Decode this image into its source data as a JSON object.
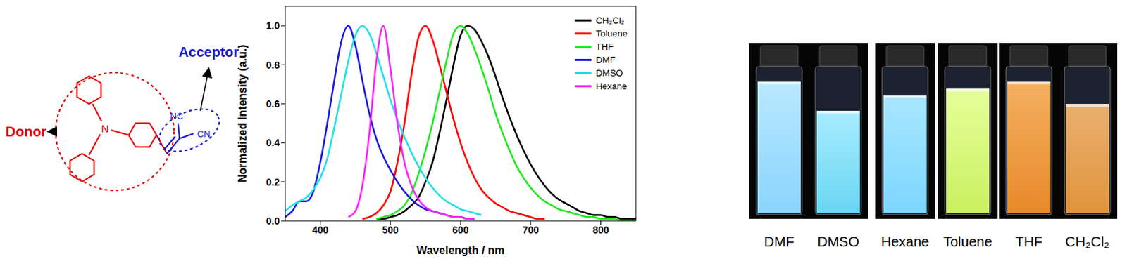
{
  "diagram": {
    "donor": "Donor",
    "acceptor": "Acceptor",
    "atoms": [
      "N",
      "NC",
      "CN"
    ]
  },
  "chart_data": {
    "type": "line",
    "xlabel": "Wavelength / nm",
    "ylabel": "Normalized Intensity (a.u.)",
    "xlim": [
      350,
      850
    ],
    "xticks": [
      400,
      500,
      600,
      700,
      800
    ],
    "ylim": [
      0,
      1.1
    ],
    "yticks": [
      {
        "value": 0,
        "label": "0.0"
      },
      {
        "value": 0.2,
        "label": "0.2"
      },
      {
        "value": 0.4,
        "label": "0.4"
      },
      {
        "value": 0.6,
        "label": "0.6"
      },
      {
        "value": 0.8,
        "label": "0.8"
      },
      {
        "value": 1,
        "label": "1.0"
      }
    ],
    "grid": false,
    "legend": "upper right",
    "x": [
      350,
      360,
      370,
      380,
      390,
      400,
      410,
      420,
      430,
      440,
      450,
      460,
      470,
      480,
      490,
      500,
      510,
      520,
      530,
      540,
      550,
      560,
      570,
      580,
      590,
      600,
      610,
      620,
      630,
      640,
      650,
      660,
      670,
      680,
      690,
      700,
      710,
      720,
      730,
      740,
      750,
      760,
      770,
      780,
      790,
      800,
      810,
      820,
      830,
      840,
      850
    ],
    "series": [
      {
        "name": "CH₂Cl₂",
        "color": "#000000",
        "values": [
          null,
          null,
          null,
          null,
          null,
          null,
          null,
          null,
          null,
          null,
          null,
          null,
          null,
          0.01,
          0.01,
          0.02,
          0.03,
          0.05,
          0.08,
          0.12,
          0.2,
          0.3,
          0.45,
          0.62,
          0.8,
          0.95,
          1.0,
          0.98,
          0.92,
          0.84,
          0.74,
          0.63,
          0.53,
          0.44,
          0.36,
          0.29,
          0.23,
          0.18,
          0.14,
          0.11,
          0.09,
          0.07,
          0.05,
          0.04,
          0.03,
          0.03,
          0.02,
          0.02,
          0.01,
          0.01,
          0.01
        ]
      },
      {
        "name": "Toluene",
        "color": "#ff0000",
        "values": [
          null,
          null,
          null,
          null,
          null,
          null,
          null,
          null,
          null,
          null,
          null,
          0.01,
          0.02,
          0.04,
          0.08,
          0.15,
          0.3,
          0.5,
          0.75,
          0.94,
          1.0,
          0.93,
          0.8,
          0.66,
          0.52,
          0.4,
          0.3,
          0.22,
          0.16,
          0.12,
          0.09,
          0.07,
          0.05,
          0.04,
          0.03,
          0.02,
          0.01,
          0.01,
          null,
          null,
          null,
          null,
          null,
          null,
          null,
          null,
          null,
          null,
          null,
          null,
          null
        ]
      },
      {
        "name": "THF",
        "color": "#22e822",
        "values": [
          null,
          null,
          null,
          null,
          null,
          null,
          null,
          null,
          null,
          null,
          null,
          null,
          null,
          0.01,
          0.02,
          0.03,
          0.05,
          0.08,
          0.14,
          0.24,
          0.36,
          0.5,
          0.66,
          0.82,
          0.96,
          1.0,
          0.96,
          0.88,
          0.78,
          0.67,
          0.55,
          0.45,
          0.36,
          0.28,
          0.22,
          0.17,
          0.13,
          0.1,
          0.08,
          0.06,
          0.05,
          0.04,
          0.03,
          0.02,
          0.02,
          0.01,
          0.01,
          0.01,
          0,
          0,
          0
        ]
      },
      {
        "name": "DMF",
        "color": "#1a1ae0",
        "values": [
          0.02,
          0.05,
          0.1,
          0.1,
          0.15,
          0.3,
          0.5,
          0.72,
          0.92,
          1.0,
          0.9,
          0.72,
          0.55,
          0.42,
          0.33,
          0.26,
          0.2,
          0.15,
          0.11,
          0.08,
          0.06,
          0.05,
          0.04,
          0.03,
          0.02,
          0.02,
          0.01,
          0.01,
          null,
          null,
          null,
          null,
          null,
          null,
          null,
          null,
          null,
          null,
          null,
          null,
          null,
          null,
          null,
          null,
          null,
          null,
          null,
          null,
          null,
          null,
          null
        ]
      },
      {
        "name": "DMSO",
        "color": "#22e0e8",
        "values": [
          0.05,
          0.08,
          0.1,
          0.12,
          0.16,
          0.22,
          0.32,
          0.48,
          0.65,
          0.82,
          0.95,
          1.0,
          0.96,
          0.86,
          0.74,
          0.62,
          0.52,
          0.43,
          0.35,
          0.28,
          0.22,
          0.17,
          0.13,
          0.1,
          0.08,
          0.06,
          0.05,
          0.04,
          0.03,
          null,
          null,
          null,
          null,
          null,
          null,
          null,
          null,
          null,
          null,
          null,
          null,
          null,
          null,
          null,
          null,
          null,
          null,
          null,
          null,
          null,
          null
        ]
      },
      {
        "name": "Hexane",
        "color": "#ff22ff",
        "values": [
          null,
          null,
          null,
          null,
          null,
          null,
          null,
          null,
          null,
          0.02,
          0.05,
          0.18,
          0.45,
          0.82,
          1.0,
          0.78,
          0.5,
          0.3,
          0.18,
          0.11,
          0.07,
          0.05,
          0.04,
          0.03,
          0.02,
          0.02,
          0.01,
          0.01,
          null,
          null,
          null,
          null,
          null,
          null,
          null,
          null,
          null,
          null,
          null,
          null,
          null,
          null,
          null,
          null,
          null,
          null,
          null,
          null,
          null,
          null,
          null
        ]
      }
    ]
  },
  "photo": {
    "labels": [
      "DMF",
      "DMSO",
      "Hexane",
      "Toluene",
      "THF",
      "CH₂Cl₂"
    ]
  }
}
